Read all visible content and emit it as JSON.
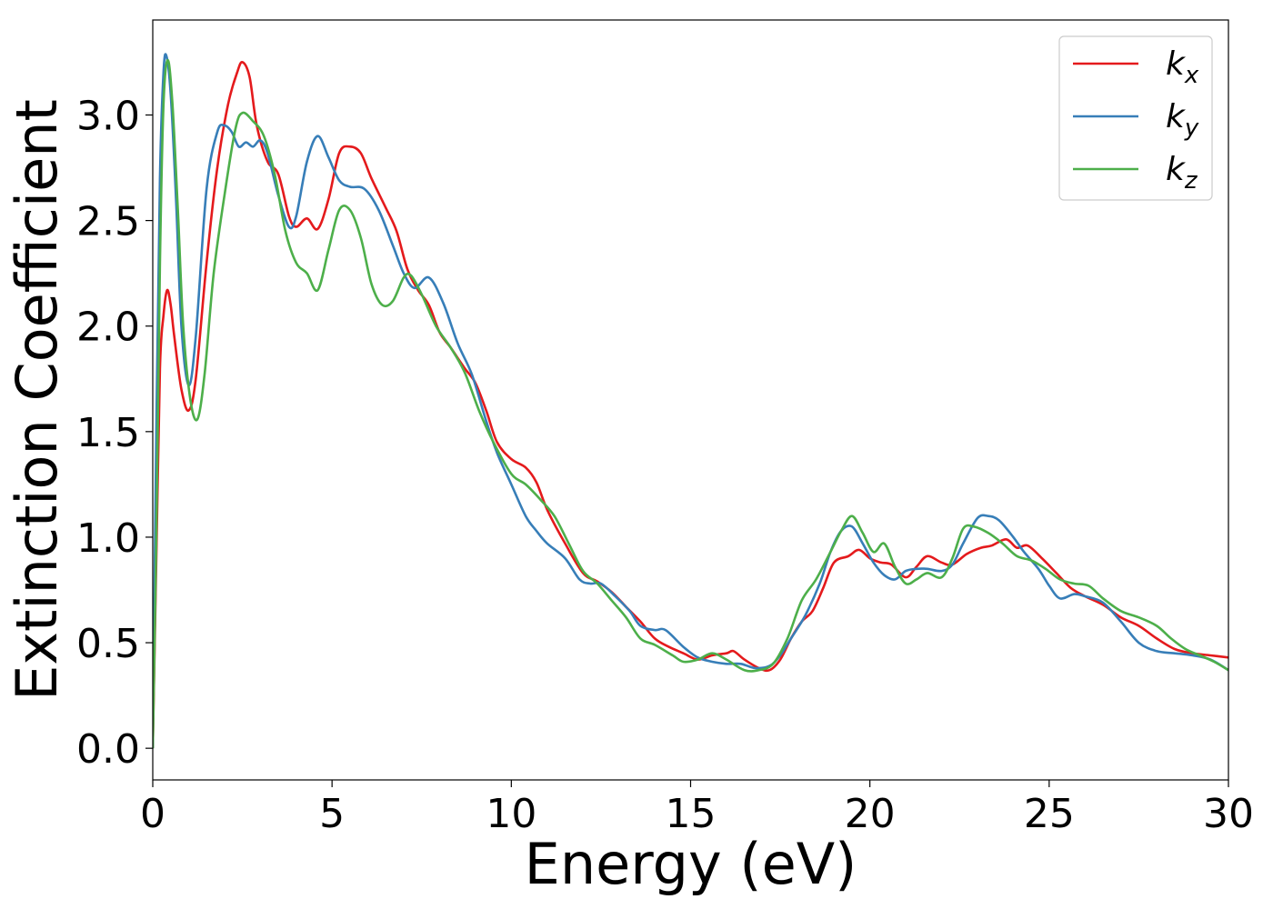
{
  "chart_data": {
    "type": "line",
    "title": "",
    "xlabel": "Energy (eV)",
    "ylabel": "Extinction Coefficient",
    "xlim": [
      0,
      30
    ],
    "ylim": [
      -0.15,
      3.45
    ],
    "xticks": [
      0,
      5,
      10,
      15,
      20,
      25,
      30
    ],
    "xtick_labels": [
      "0",
      "5",
      "10",
      "15",
      "20",
      "25",
      "30"
    ],
    "yticks": [
      0.0,
      0.5,
      1.0,
      1.5,
      2.0,
      2.5,
      3.0
    ],
    "ytick_labels": [
      "0.0",
      "0.5",
      "1.0",
      "1.5",
      "2.0",
      "2.5",
      "3.0"
    ],
    "grid": false,
    "legend_position": "top-right",
    "series": [
      {
        "name": "k_x",
        "label_base": "k",
        "label_sub": "x",
        "color": "#e41a1c",
        "points": [
          [
            0,
            0
          ],
          [
            0.1,
            0.9
          ],
          [
            0.2,
            1.8
          ],
          [
            0.3,
            2.05
          ],
          [
            0.4,
            2.17
          ],
          [
            0.5,
            2.1
          ],
          [
            0.6,
            1.95
          ],
          [
            0.8,
            1.7
          ],
          [
            1.0,
            1.6
          ],
          [
            1.2,
            1.75
          ],
          [
            1.5,
            2.3
          ],
          [
            1.8,
            2.75
          ],
          [
            2.1,
            3.05
          ],
          [
            2.35,
            3.2
          ],
          [
            2.5,
            3.25
          ],
          [
            2.7,
            3.18
          ],
          [
            2.9,
            2.95
          ],
          [
            3.2,
            2.78
          ],
          [
            3.5,
            2.72
          ],
          [
            3.8,
            2.52
          ],
          [
            4.0,
            2.47
          ],
          [
            4.3,
            2.51
          ],
          [
            4.6,
            2.46
          ],
          [
            4.9,
            2.6
          ],
          [
            5.2,
            2.82
          ],
          [
            5.5,
            2.85
          ],
          [
            5.8,
            2.82
          ],
          [
            6.1,
            2.7
          ],
          [
            6.5,
            2.56
          ],
          [
            6.8,
            2.45
          ],
          [
            7.1,
            2.27
          ],
          [
            7.4,
            2.17
          ],
          [
            7.7,
            2.1
          ],
          [
            8.0,
            1.97
          ],
          [
            8.3,
            1.9
          ],
          [
            8.7,
            1.8
          ],
          [
            9.0,
            1.73
          ],
          [
            9.3,
            1.6
          ],
          [
            9.6,
            1.45
          ],
          [
            10.0,
            1.37
          ],
          [
            10.4,
            1.33
          ],
          [
            10.7,
            1.26
          ],
          [
            11.0,
            1.13
          ],
          [
            11.5,
            0.97
          ],
          [
            12.0,
            0.83
          ],
          [
            12.4,
            0.79
          ],
          [
            12.8,
            0.74
          ],
          [
            13.2,
            0.67
          ],
          [
            13.6,
            0.6
          ],
          [
            14.0,
            0.52
          ],
          [
            14.4,
            0.48
          ],
          [
            14.8,
            0.45
          ],
          [
            15.2,
            0.42
          ],
          [
            15.6,
            0.44
          ],
          [
            16.0,
            0.45
          ],
          [
            16.2,
            0.46
          ],
          [
            16.5,
            0.42
          ],
          [
            16.9,
            0.38
          ],
          [
            17.2,
            0.37
          ],
          [
            17.5,
            0.42
          ],
          [
            17.8,
            0.52
          ],
          [
            18.1,
            0.6
          ],
          [
            18.4,
            0.65
          ],
          [
            18.7,
            0.76
          ],
          [
            19.0,
            0.88
          ],
          [
            19.4,
            0.91
          ],
          [
            19.7,
            0.94
          ],
          [
            20.0,
            0.9
          ],
          [
            20.3,
            0.88
          ],
          [
            20.6,
            0.87
          ],
          [
            21.0,
            0.81
          ],
          [
            21.3,
            0.86
          ],
          [
            21.6,
            0.91
          ],
          [
            22.0,
            0.88
          ],
          [
            22.3,
            0.87
          ],
          [
            22.7,
            0.92
          ],
          [
            23.1,
            0.95
          ],
          [
            23.4,
            0.96
          ],
          [
            23.8,
            0.99
          ],
          [
            24.1,
            0.95
          ],
          [
            24.4,
            0.96
          ],
          [
            24.8,
            0.9
          ],
          [
            25.2,
            0.83
          ],
          [
            25.6,
            0.76
          ],
          [
            26.0,
            0.72
          ],
          [
            26.5,
            0.68
          ],
          [
            27.0,
            0.62
          ],
          [
            27.5,
            0.58
          ],
          [
            28.0,
            0.52
          ],
          [
            28.5,
            0.47
          ],
          [
            29.0,
            0.45
          ],
          [
            29.5,
            0.44
          ],
          [
            30.0,
            0.43
          ]
        ]
      },
      {
        "name": "k_y",
        "label_base": "k",
        "label_sub": "y",
        "color": "#377eb8",
        "points": [
          [
            0,
            0
          ],
          [
            0.1,
            1.5
          ],
          [
            0.2,
            2.7
          ],
          [
            0.3,
            3.2
          ],
          [
            0.38,
            3.28
          ],
          [
            0.5,
            3.1
          ],
          [
            0.65,
            2.6
          ],
          [
            0.8,
            2.0
          ],
          [
            1.0,
            1.72
          ],
          [
            1.2,
            1.95
          ],
          [
            1.5,
            2.65
          ],
          [
            1.8,
            2.92
          ],
          [
            2.0,
            2.95
          ],
          [
            2.2,
            2.92
          ],
          [
            2.4,
            2.85
          ],
          [
            2.6,
            2.87
          ],
          [
            2.8,
            2.85
          ],
          [
            3.0,
            2.88
          ],
          [
            3.2,
            2.82
          ],
          [
            3.5,
            2.62
          ],
          [
            3.8,
            2.47
          ],
          [
            4.0,
            2.52
          ],
          [
            4.3,
            2.78
          ],
          [
            4.6,
            2.9
          ],
          [
            4.9,
            2.8
          ],
          [
            5.2,
            2.69
          ],
          [
            5.5,
            2.66
          ],
          [
            5.9,
            2.65
          ],
          [
            6.3,
            2.55
          ],
          [
            6.7,
            2.38
          ],
          [
            7.0,
            2.25
          ],
          [
            7.3,
            2.18
          ],
          [
            7.7,
            2.23
          ],
          [
            8.1,
            2.11
          ],
          [
            8.5,
            1.92
          ],
          [
            8.9,
            1.77
          ],
          [
            9.3,
            1.55
          ],
          [
            9.6,
            1.4
          ],
          [
            10.0,
            1.25
          ],
          [
            10.4,
            1.1
          ],
          [
            10.7,
            1.03
          ],
          [
            11.0,
            0.97
          ],
          [
            11.5,
            0.9
          ],
          [
            11.9,
            0.8
          ],
          [
            12.2,
            0.78
          ],
          [
            12.5,
            0.78
          ],
          [
            12.9,
            0.72
          ],
          [
            13.3,
            0.65
          ],
          [
            13.6,
            0.58
          ],
          [
            14.0,
            0.56
          ],
          [
            14.3,
            0.56
          ],
          [
            14.8,
            0.48
          ],
          [
            15.2,
            0.43
          ],
          [
            15.6,
            0.41
          ],
          [
            16.0,
            0.4
          ],
          [
            16.4,
            0.4
          ],
          [
            16.8,
            0.38
          ],
          [
            17.2,
            0.39
          ],
          [
            17.5,
            0.44
          ],
          [
            17.8,
            0.52
          ],
          [
            18.2,
            0.63
          ],
          [
            18.6,
            0.78
          ],
          [
            18.9,
            0.93
          ],
          [
            19.2,
            1.03
          ],
          [
            19.5,
            1.05
          ],
          [
            19.8,
            0.97
          ],
          [
            20.1,
            0.88
          ],
          [
            20.4,
            0.82
          ],
          [
            20.7,
            0.8
          ],
          [
            21.0,
            0.84
          ],
          [
            21.3,
            0.85
          ],
          [
            21.6,
            0.85
          ],
          [
            22.0,
            0.84
          ],
          [
            22.3,
            0.87
          ],
          [
            22.6,
            0.97
          ],
          [
            23.0,
            1.09
          ],
          [
            23.3,
            1.1
          ],
          [
            23.6,
            1.08
          ],
          [
            24.0,
            1.0
          ],
          [
            24.3,
            0.93
          ],
          [
            24.7,
            0.85
          ],
          [
            25.0,
            0.77
          ],
          [
            25.3,
            0.71
          ],
          [
            25.7,
            0.73
          ],
          [
            26.0,
            0.72
          ],
          [
            26.5,
            0.69
          ],
          [
            27.0,
            0.6
          ],
          [
            27.5,
            0.5
          ],
          [
            28.0,
            0.46
          ],
          [
            28.5,
            0.45
          ],
          [
            29.0,
            0.44
          ],
          [
            29.5,
            0.42
          ],
          [
            30.0,
            0.37
          ]
        ]
      },
      {
        "name": "k_z",
        "label_base": "k",
        "label_sub": "z",
        "color": "#4daf4a",
        "points": [
          [
            0,
            0
          ],
          [
            0.1,
            1.0
          ],
          [
            0.2,
            2.3
          ],
          [
            0.3,
            3.05
          ],
          [
            0.42,
            3.26
          ],
          [
            0.55,
            3.05
          ],
          [
            0.7,
            2.55
          ],
          [
            0.85,
            2.0
          ],
          [
            1.05,
            1.65
          ],
          [
            1.25,
            1.56
          ],
          [
            1.45,
            1.78
          ],
          [
            1.7,
            2.25
          ],
          [
            2.0,
            2.62
          ],
          [
            2.3,
            2.93
          ],
          [
            2.5,
            3.01
          ],
          [
            2.8,
            2.97
          ],
          [
            3.1,
            2.9
          ],
          [
            3.4,
            2.72
          ],
          [
            3.7,
            2.45
          ],
          [
            4.0,
            2.3
          ],
          [
            4.3,
            2.25
          ],
          [
            4.6,
            2.17
          ],
          [
            4.9,
            2.36
          ],
          [
            5.2,
            2.55
          ],
          [
            5.5,
            2.55
          ],
          [
            5.8,
            2.42
          ],
          [
            6.1,
            2.2
          ],
          [
            6.4,
            2.1
          ],
          [
            6.7,
            2.12
          ],
          [
            7.0,
            2.23
          ],
          [
            7.2,
            2.24
          ],
          [
            7.5,
            2.15
          ],
          [
            7.9,
            2.0
          ],
          [
            8.3,
            1.9
          ],
          [
            8.7,
            1.78
          ],
          [
            9.1,
            1.6
          ],
          [
            9.5,
            1.45
          ],
          [
            10.0,
            1.3
          ],
          [
            10.4,
            1.25
          ],
          [
            10.8,
            1.18
          ],
          [
            11.2,
            1.1
          ],
          [
            11.6,
            0.97
          ],
          [
            12.0,
            0.84
          ],
          [
            12.4,
            0.78
          ],
          [
            12.8,
            0.7
          ],
          [
            13.2,
            0.62
          ],
          [
            13.6,
            0.52
          ],
          [
            14.0,
            0.49
          ],
          [
            14.5,
            0.44
          ],
          [
            14.8,
            0.41
          ],
          [
            15.2,
            0.42
          ],
          [
            15.6,
            0.45
          ],
          [
            16.0,
            0.42
          ],
          [
            16.5,
            0.37
          ],
          [
            16.9,
            0.37
          ],
          [
            17.3,
            0.4
          ],
          [
            17.7,
            0.52
          ],
          [
            18.1,
            0.7
          ],
          [
            18.5,
            0.8
          ],
          [
            18.9,
            0.93
          ],
          [
            19.2,
            1.03
          ],
          [
            19.5,
            1.1
          ],
          [
            19.8,
            1.02
          ],
          [
            20.1,
            0.93
          ],
          [
            20.4,
            0.97
          ],
          [
            20.7,
            0.86
          ],
          [
            21.0,
            0.78
          ],
          [
            21.3,
            0.8
          ],
          [
            21.6,
            0.83
          ],
          [
            22.0,
            0.81
          ],
          [
            22.3,
            0.9
          ],
          [
            22.6,
            1.04
          ],
          [
            22.9,
            1.05
          ],
          [
            23.3,
            1.02
          ],
          [
            23.7,
            0.97
          ],
          [
            24.1,
            0.91
          ],
          [
            24.5,
            0.89
          ],
          [
            24.9,
            0.85
          ],
          [
            25.3,
            0.8
          ],
          [
            25.7,
            0.78
          ],
          [
            26.1,
            0.77
          ],
          [
            26.5,
            0.71
          ],
          [
            27.0,
            0.65
          ],
          [
            27.5,
            0.62
          ],
          [
            28.0,
            0.58
          ],
          [
            28.4,
            0.52
          ],
          [
            28.8,
            0.47
          ],
          [
            29.2,
            0.44
          ],
          [
            29.6,
            0.41
          ],
          [
            30.0,
            0.37
          ]
        ]
      }
    ]
  }
}
